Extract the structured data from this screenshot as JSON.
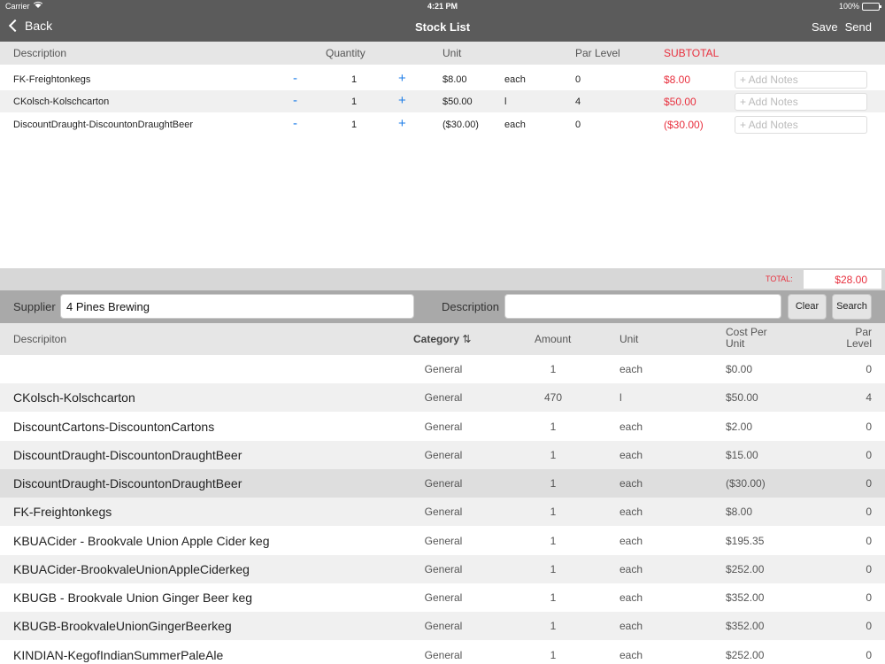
{
  "status": {
    "carrier": "Carrier",
    "time": "4:21 PM",
    "battery": "100%"
  },
  "nav": {
    "back": "Back",
    "title": "Stock List",
    "save": "Save",
    "send": "Send"
  },
  "list_header": {
    "description": "Description",
    "quantity": "Quantity",
    "unit": "Unit",
    "par_level": "Par Level",
    "subtotal": "SUBTOTAL"
  },
  "stock_items": [
    {
      "description": "FK-Freightonkegs",
      "qty": "1",
      "price": "$8.00",
      "unit": "each",
      "par": "0",
      "subtotal": "$8.00"
    },
    {
      "description": "CKolsch-Kolschcarton",
      "qty": "1",
      "price": "$50.00",
      "unit": "l",
      "par": "4",
      "subtotal": "$50.00"
    },
    {
      "description": "DiscountDraught-DiscountonDraughtBeer",
      "qty": "1",
      "price": "($30.00)",
      "unit": "each",
      "par": "0",
      "subtotal": "($30.00)"
    }
  ],
  "stock_controls": {
    "minus": "-",
    "plus": "+",
    "notes_placeholder": "+ Add Notes"
  },
  "total": {
    "label": "TOTAL:",
    "value": "$28.00"
  },
  "search": {
    "supplier_label": "Supplier",
    "supplier_value": "4 Pines Brewing",
    "description_label": "Description",
    "description_value": "",
    "clear": "Clear",
    "search": "Search"
  },
  "product_header": {
    "description": "Descripiton",
    "category": "Category",
    "category_sort": "⇅",
    "amount": "Amount",
    "unit": "Unit",
    "cost_line1": "Cost Per",
    "cost_line2": "Unit",
    "par_line1": "Par",
    "par_line2": "Level"
  },
  "products": [
    {
      "description": "",
      "category": "General",
      "amount": "1",
      "unit": "each",
      "cost": "$0.00",
      "par": "0"
    },
    {
      "description": "CKolsch-Kolschcarton",
      "category": "General",
      "amount": "470",
      "unit": "l",
      "cost": "$50.00",
      "par": "4"
    },
    {
      "description": "DiscountCartons-DiscountonCartons",
      "category": "General",
      "amount": "1",
      "unit": "each",
      "cost": "$2.00",
      "par": "0"
    },
    {
      "description": "DiscountDraught-DiscountonDraughtBeer",
      "category": "General",
      "amount": "1",
      "unit": "each",
      "cost": "$15.00",
      "par": "0"
    },
    {
      "description": "DiscountDraught-DiscountonDraughtBeer",
      "category": "General",
      "amount": "1",
      "unit": "each",
      "cost": "($30.00)",
      "par": "0",
      "selected": true
    },
    {
      "description": "FK-Freightonkegs",
      "category": "General",
      "amount": "1",
      "unit": "each",
      "cost": "$8.00",
      "par": "0"
    },
    {
      "description": "KBUACider - Brookvale Union Apple Cider keg",
      "category": "General",
      "amount": "1",
      "unit": "each",
      "cost": "$195.35",
      "par": "0"
    },
    {
      "description": "KBUACider-BrookvaleUnionAppleCiderkeg",
      "category": "General",
      "amount": "1",
      "unit": "each",
      "cost": "$252.00",
      "par": "0"
    },
    {
      "description": "KBUGB - Brookvale Union Ginger Beer keg",
      "category": "General",
      "amount": "1",
      "unit": "each",
      "cost": "$352.00",
      "par": "0"
    },
    {
      "description": "KBUGB-BrookvaleUnionGingerBeerkeg",
      "category": "General",
      "amount": "1",
      "unit": "each",
      "cost": "$352.00",
      "par": "0"
    },
    {
      "description": "KINDIAN-KegofIndianSummerPaleAle",
      "category": "General",
      "amount": "1",
      "unit": "each",
      "cost": "$252.00",
      "par": "0"
    }
  ],
  "colors": {
    "bar": "#5b5b5b",
    "accent_red": "#e8303e",
    "accent_blue": "#1e7ee8"
  }
}
